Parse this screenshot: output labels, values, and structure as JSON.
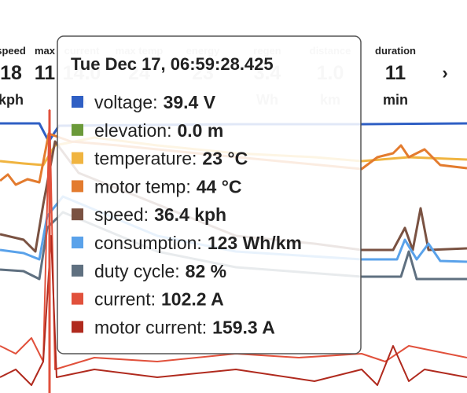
{
  "stats": [
    {
      "label": "speed",
      "value": "18",
      "unit": "kph"
    },
    {
      "label": "max",
      "value": "11",
      "unit": ""
    },
    {
      "label": "current",
      "value": "14.0",
      "unit": "A"
    },
    {
      "label": "max temp",
      "value": "24",
      "unit": ""
    },
    {
      "label": "energy",
      "value": "23",
      "unit": ""
    },
    {
      "label": "regen",
      "value": "3.4",
      "unit": "Wh"
    },
    {
      "label": "distance",
      "value": "1.0",
      "unit": "km"
    },
    {
      "label": "duration",
      "value": "11",
      "unit": "min"
    }
  ],
  "nav": "›",
  "tooltip": {
    "title": "Tue Dec 17, 06:59:28.425",
    "items": [
      {
        "label": "voltage:",
        "value": "39.4 V",
        "color": "#2f5fc4"
      },
      {
        "label": "elevation:",
        "value": "0.0 m",
        "color": "#6b9a3a"
      },
      {
        "label": "temperature:",
        "value": "23 °C",
        "color": "#f0b440"
      },
      {
        "label": "motor temp:",
        "value": "44 °C",
        "color": "#e37b2e"
      },
      {
        "label": "speed:",
        "value": "36.4 kph",
        "color": "#7a5242"
      },
      {
        "label": "consumption:",
        "value": "123 Wh/km",
        "color": "#5aa2ea"
      },
      {
        "label": "duty cycle:",
        "value": "82 %",
        "color": "#5f7080"
      },
      {
        "label": "current:",
        "value": "102.2 A",
        "color": "#e1513c"
      },
      {
        "label": "motor current:",
        "value": "159.3 A",
        "color": "#b02a1e"
      }
    ]
  }
}
